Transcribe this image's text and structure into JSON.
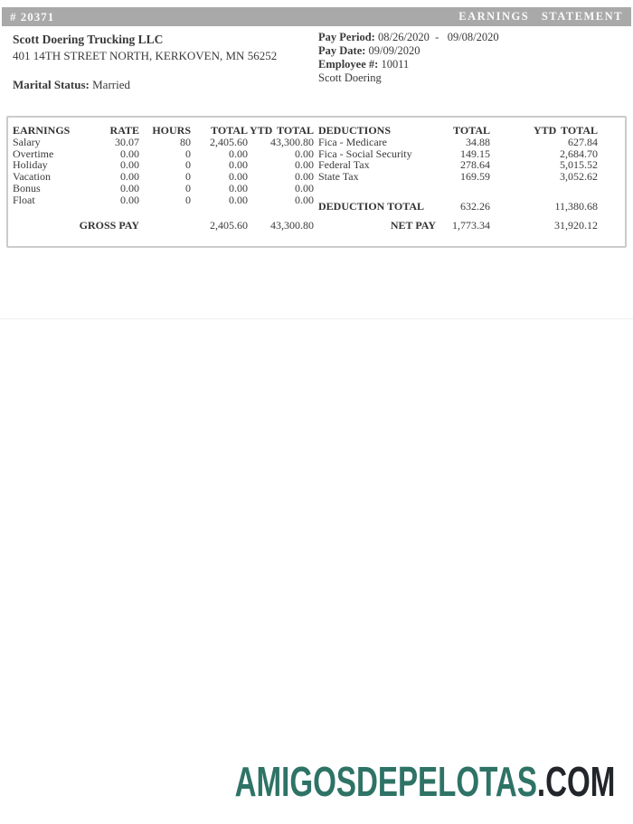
{
  "header": {
    "doc_number": "# 20371",
    "title": "EARNINGS STATEMENT"
  },
  "company": {
    "name": "Scott Doering Trucking LLC",
    "address": "401 14TH STREET NORTH, KERKOVEN, MN 56252",
    "marital_status_label": "Marital Status:",
    "marital_status_value": " Married"
  },
  "pay_info": {
    "pay_period_label": "Pay Period:",
    "pay_period_value": " 08/26/2020  -   09/08/2020",
    "pay_date_label": "Pay Date:",
    "pay_date_value": " 09/09/2020",
    "employee_label": "Employee #:",
    "employee_value": " 10011",
    "employee_name": "Scott Doering"
  },
  "earnings": {
    "headers": [
      "EARNINGS",
      "RATE",
      "HOURS",
      "TOTAL",
      "YTD TOTAL"
    ],
    "rows": [
      {
        "label": "Salary",
        "rate": "30.07",
        "hours": "80",
        "total": "2,405.60",
        "ytd": "43,300.80"
      },
      {
        "label": "Overtime",
        "rate": "0.00",
        "hours": "0",
        "total": "0.00",
        "ytd": "0.00"
      },
      {
        "label": "Holiday",
        "rate": "0.00",
        "hours": "0",
        "total": "0.00",
        "ytd": "0.00"
      },
      {
        "label": "Vacation",
        "rate": "0.00",
        "hours": "0",
        "total": "0.00",
        "ytd": "0.00"
      },
      {
        "label": "Bonus",
        "rate": "0.00",
        "hours": "0",
        "total": "0.00",
        "ytd": "0.00"
      },
      {
        "label": "Float",
        "rate": "0.00",
        "hours": "0",
        "total": "0.00",
        "ytd": "0.00"
      }
    ],
    "gross_pay_label": "GROSS PAY",
    "gross_pay_total": "2,405.60",
    "gross_pay_ytd": "43,300.80"
  },
  "deductions": {
    "headers": [
      "DEDUCTIONS",
      "TOTAL",
      "YTD TOTAL"
    ],
    "rows": [
      {
        "label": "Fica - Medicare",
        "total": "34.88",
        "ytd": "627.84"
      },
      {
        "label": "Fica - Social Security",
        "total": "149.15",
        "ytd": "2,684.70"
      },
      {
        "label": "Federal Tax",
        "total": "278.64",
        "ytd": "5,015.52"
      },
      {
        "label": "State Tax",
        "total": "169.59",
        "ytd": "3,052.62"
      }
    ],
    "total_label": "DEDUCTION TOTAL",
    "total_value": "632.26",
    "total_ytd": "11,380.68",
    "net_pay_label": "NET PAY",
    "net_pay_value": "1,773.34",
    "net_pay_ytd": "31,920.12"
  },
  "footer": {
    "brand_primary": "AMIGOSDEPELOTAS",
    "brand_suffix": ".COM"
  },
  "colors": {
    "header_bar": "#a9a9a9",
    "brand_green": "#2e7366",
    "brand_dark": "#22262a",
    "table_border": "#cbcbcb"
  }
}
